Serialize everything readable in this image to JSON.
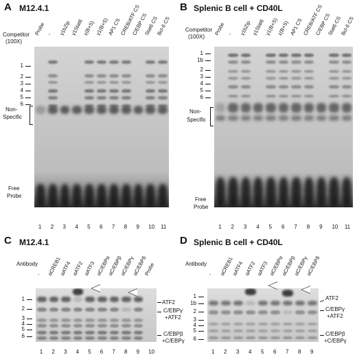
{
  "panelA": {
    "letter": "A",
    "title": "M12.4.1",
    "competitor_label": "Competitor",
    "excess_label": "(100X)",
    "lanes": [
      "Probe",
      "-",
      "γ1bZip",
      "γ1Stat6",
      "ε(B+S)",
      "γ1(B+S)",
      "AP1 CS",
      "CREB/ATF CS",
      "C/EBP CS",
      "Stat6 CS",
      "Bcl-6 CS"
    ],
    "ladder": [
      "1",
      "2",
      "3",
      "4",
      "5",
      "6"
    ],
    "nonspecific": [
      "Non-",
      "Specific"
    ],
    "free_probe": [
      "Free",
      "Probe"
    ],
    "lane_numbers": [
      "1",
      "2",
      "3",
      "4",
      "5",
      "6",
      "7",
      "8",
      "9",
      "10",
      "11"
    ]
  },
  "panelB": {
    "letter": "B",
    "title": "Splenic B cell + CD40L",
    "competitor_label": "Competitor",
    "excess_label": "(100X)",
    "lanes": [
      "Probe",
      "-",
      "γ1bZip",
      "γ1Stat6",
      "γ1(B+S)",
      "ε(B+S)",
      "AP1 CS",
      "CREB/ATF CS",
      "C/EBP CS",
      "Stat6 CS",
      "Bcl-6 CS"
    ],
    "ladder": [
      "1",
      "1b",
      "2",
      "3",
      "4",
      "5",
      "6"
    ],
    "nonspecific": [
      "Non-",
      "Specific"
    ],
    "free_probe": [
      "Free",
      "Probe"
    ],
    "lane_numbers": [
      "1",
      "2",
      "3",
      "4",
      "5",
      "6",
      "7",
      "8",
      "9",
      "10",
      "11"
    ]
  },
  "panelC": {
    "letter": "C",
    "title": "M12.4.1",
    "antibody_label": "Antibody",
    "lanes": [
      "-",
      "αCREB1",
      "αATF4",
      "αATF2",
      "αATF3",
      "αC/EBPα",
      "αC/EBPβ",
      "αC/EBPγ",
      "αC/EBPδ",
      "Probe"
    ],
    "ladder": [
      "1",
      "2",
      "3",
      "4",
      "5",
      "6"
    ],
    "right_labels": {
      "atf2": "ATF2",
      "cebpg_atf2": [
        "C/EBPγ",
        "+ATF2"
      ],
      "cebpb_cebpg": [
        "C/EBPβ",
        "+C/EBPγ"
      ]
    },
    "lane_numbers": [
      "1",
      "2",
      "3",
      "4",
      "5",
      "6",
      "7",
      "8",
      "9",
      "10"
    ]
  },
  "panelD": {
    "letter": "D",
    "title": "Splenic B cell + CD40L",
    "antibody_label": "Antibody",
    "lanes": [
      "-",
      "αCREB1",
      "αATF4",
      "αATF2",
      "αATF3",
      "αC/EBPα",
      "αC/EBPβ",
      "αC/EBPγ",
      "αC/EBPδ"
    ],
    "ladder": [
      "1",
      "1b",
      "2",
      "3",
      "4",
      "5",
      "6"
    ],
    "right_labels": {
      "atf2": "ATF2",
      "cebpg_atf2": [
        "C/EBPγ",
        "+ATF2"
      ],
      "cebpb_cebpg": [
        "C/EBPβ",
        "+C/EBPγ"
      ]
    },
    "lane_numbers": [
      "1",
      "2",
      "3",
      "4",
      "5",
      "6",
      "7",
      "8",
      "9"
    ]
  }
}
